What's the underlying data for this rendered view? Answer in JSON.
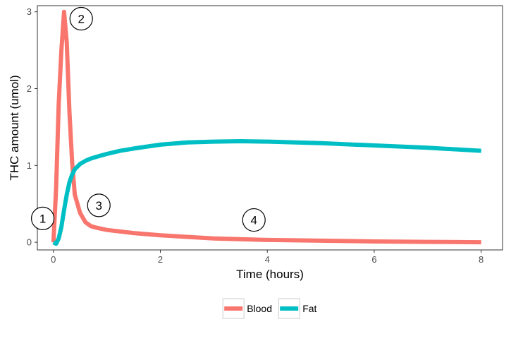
{
  "chart_data": {
    "type": "line",
    "title": "",
    "xlabel": "Time (hours)",
    "ylabel": "THC amount (umol)",
    "xlim": [
      -0.3,
      8.4
    ],
    "ylim": [
      -0.1,
      3.08
    ],
    "x_ticks": [
      0,
      2,
      4,
      6,
      8
    ],
    "y_ticks": [
      0,
      1,
      2,
      3
    ],
    "x_tick_labels": [
      "0",
      "2",
      "4",
      "6",
      "8"
    ],
    "y_tick_labels": [
      "0",
      "1",
      "2",
      "3"
    ],
    "grid": false,
    "legend_position": "bottom",
    "series": [
      {
        "name": "Blood",
        "color": "#F8766D",
        "x": [
          0,
          0.05,
          0.1,
          0.15,
          0.2,
          0.25,
          0.3,
          0.35,
          0.4,
          0.5,
          0.6,
          0.7,
          0.8,
          1.0,
          1.5,
          2.0,
          3.0,
          4.0,
          5.0,
          6.0,
          7.0,
          8.0
        ],
        "y": [
          0,
          0.7,
          1.8,
          2.5,
          3.0,
          2.6,
          1.7,
          1.05,
          0.62,
          0.38,
          0.26,
          0.21,
          0.19,
          0.16,
          0.12,
          0.09,
          0.05,
          0.03,
          0.02,
          0.01,
          0.005,
          0.0
        ]
      },
      {
        "name": "Fat",
        "color": "#00BFC4",
        "x": [
          0,
          0.05,
          0.1,
          0.15,
          0.2,
          0.25,
          0.3,
          0.35,
          0.4,
          0.5,
          0.6,
          0.7,
          0.8,
          1.0,
          1.25,
          1.5,
          2.0,
          2.5,
          3.0,
          3.5,
          4.0,
          5.0,
          6.0,
          7.0,
          8.0
        ],
        "y": [
          0,
          -0.02,
          0.05,
          0.2,
          0.42,
          0.62,
          0.78,
          0.88,
          0.95,
          1.02,
          1.06,
          1.09,
          1.11,
          1.15,
          1.19,
          1.22,
          1.27,
          1.3,
          1.31,
          1.315,
          1.31,
          1.29,
          1.26,
          1.23,
          1.19
        ]
      }
    ],
    "annotations": [
      {
        "label": "1",
        "x": -0.2,
        "y": 0.31
      },
      {
        "label": "2",
        "x": 0.52,
        "y": 2.91
      },
      {
        "label": "3",
        "x": 0.85,
        "y": 0.48
      },
      {
        "label": "4",
        "x": 3.75,
        "y": 0.29
      }
    ]
  },
  "colors": {
    "panel_border": "#333333",
    "tick": "#333333",
    "legend_key_border": "#cccccc"
  }
}
